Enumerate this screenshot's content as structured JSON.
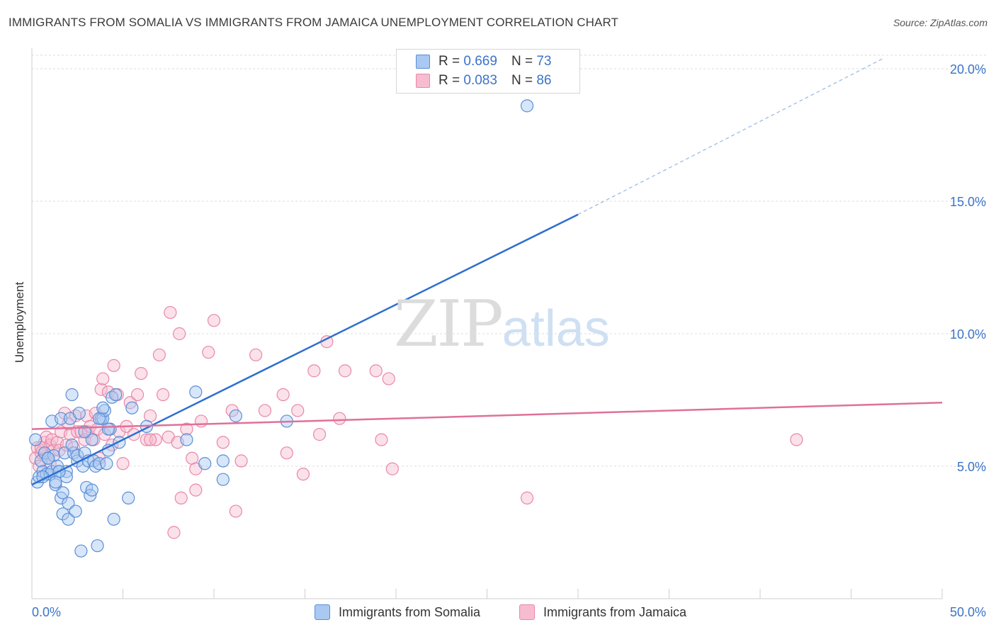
{
  "title": "IMMIGRANTS FROM SOMALIA VS IMMIGRANTS FROM JAMAICA UNEMPLOYMENT CORRELATION CHART",
  "source": "Source: ZipAtlas.com",
  "watermark": {
    "zip": "ZIP",
    "atlas": "atlas"
  },
  "legend": {
    "rows": [
      {
        "r_label": "R =",
        "r_value": "0.669",
        "n_label": "N =",
        "n_value": "73"
      },
      {
        "r_label": "R =",
        "r_value": "0.083",
        "n_label": "N =",
        "n_value": "86"
      }
    ]
  },
  "bottom_legend": [
    "Immigrants from Somalia",
    "Immigrants from Jamaica"
  ],
  "colors": {
    "somalia_fill": "#a9c8f2",
    "somalia_stroke": "#5b8fd6",
    "somalia_line": "#2e6fd0",
    "jamaica_fill": "#f7bcd0",
    "jamaica_stroke": "#e888a8",
    "jamaica_line": "#e0709a",
    "axis_text": "#3a73c9",
    "grid": "#dddddd"
  },
  "chart_data": {
    "type": "scatter",
    "title": "IMMIGRANTS FROM SOMALIA VS IMMIGRANTS FROM JAMAICA UNEMPLOYMENT CORRELATION CHART",
    "xlabel": "",
    "ylabel": "Unemployment",
    "xlim": [
      0,
      50
    ],
    "ylim": [
      0,
      20.5
    ],
    "x_tick_labels": [
      "0.0%",
      "50.0%"
    ],
    "y_ticks": [
      5,
      10,
      15,
      20
    ],
    "y_tick_labels": [
      "5.0%",
      "10.0%",
      "15.0%",
      "20.0%"
    ],
    "grid": "horizontal dashed",
    "legend_position": "top-center",
    "series": [
      {
        "name": "Immigrants from Somalia",
        "R": 0.669,
        "N": 73,
        "trend": {
          "x": [
            0,
            30
          ],
          "y": [
            4.3,
            14.5
          ],
          "extended_to": [
            46.8,
            20.4
          ]
        },
        "points": [
          [
            0.2,
            6.0
          ],
          [
            0.3,
            4.4
          ],
          [
            0.4,
            4.6
          ],
          [
            0.5,
            5.2
          ],
          [
            0.6,
            4.8
          ],
          [
            0.7,
            5.5
          ],
          [
            0.8,
            4.7
          ],
          [
            0.9,
            5.3
          ],
          [
            1.0,
            4.7
          ],
          [
            1.1,
            4.8
          ],
          [
            1.2,
            5.4
          ],
          [
            1.1,
            6.7
          ],
          [
            1.3,
            4.3
          ],
          [
            1.4,
            5.0
          ],
          [
            1.5,
            4.8
          ],
          [
            1.6,
            3.8
          ],
          [
            1.6,
            6.8
          ],
          [
            1.7,
            4.0
          ],
          [
            1.8,
            5.5
          ],
          [
            1.9,
            4.8
          ],
          [
            1.7,
            3.2
          ],
          [
            1.9,
            4.6
          ],
          [
            2.0,
            3.0
          ],
          [
            2.0,
            3.6
          ],
          [
            2.1,
            6.8
          ],
          [
            2.2,
            7.7
          ],
          [
            2.3,
            5.5
          ],
          [
            2.4,
            3.3
          ],
          [
            2.5,
            5.2
          ],
          [
            2.5,
            5.4
          ],
          [
            2.6,
            7.0
          ],
          [
            2.7,
            1.8
          ],
          [
            2.8,
            5.0
          ],
          [
            2.9,
            5.5
          ],
          [
            3.0,
            4.2
          ],
          [
            3.1,
            5.2
          ],
          [
            3.2,
            3.9
          ],
          [
            3.3,
            4.1
          ],
          [
            3.3,
            6.0
          ],
          [
            3.4,
            5.2
          ],
          [
            3.5,
            5.0
          ],
          [
            3.6,
            2.0
          ],
          [
            3.7,
            5.1
          ],
          [
            3.8,
            6.8
          ],
          [
            3.9,
            6.8
          ],
          [
            4.0,
            7.1
          ],
          [
            4.1,
            5.1
          ],
          [
            4.2,
            5.6
          ],
          [
            4.3,
            6.4
          ],
          [
            4.4,
            7.6
          ],
          [
            4.5,
            3.0
          ],
          [
            4.6,
            7.7
          ],
          [
            4.8,
            5.9
          ],
          [
            5.3,
            3.8
          ],
          [
            5.5,
            7.2
          ],
          [
            6.3,
            6.5
          ],
          [
            8.5,
            6.0
          ],
          [
            9.0,
            7.8
          ],
          [
            9.5,
            5.1
          ],
          [
            10.5,
            5.2
          ],
          [
            11.2,
            6.9
          ],
          [
            14.0,
            6.7
          ],
          [
            10.5,
            4.5
          ],
          [
            3.7,
            6.8
          ],
          [
            2.9,
            6.3
          ],
          [
            1.5,
            4.8
          ],
          [
            0.9,
            5.3
          ],
          [
            0.6,
            4.6
          ],
          [
            1.3,
            4.4
          ],
          [
            3.9,
            7.2
          ],
          [
            2.2,
            5.8
          ],
          [
            4.2,
            6.4
          ],
          [
            27.2,
            18.6
          ]
        ]
      },
      {
        "name": "Immigrants from Jamaica",
        "R": 0.083,
        "N": 86,
        "trend": {
          "x": [
            0,
            50
          ],
          "y": [
            6.4,
            7.4
          ]
        },
        "points": [
          [
            0.2,
            5.3
          ],
          [
            0.3,
            5.7
          ],
          [
            0.4,
            5.0
          ],
          [
            0.5,
            5.5
          ],
          [
            0.6,
            5.6
          ],
          [
            0.7,
            5.9
          ],
          [
            0.8,
            6.1
          ],
          [
            0.9,
            5.3
          ],
          [
            1.0,
            5.8
          ],
          [
            1.1,
            6.0
          ],
          [
            1.2,
            5.6
          ],
          [
            1.4,
            5.9
          ],
          [
            1.5,
            5.6
          ],
          [
            1.6,
            6.3
          ],
          [
            1.8,
            7.0
          ],
          [
            1.9,
            5.8
          ],
          [
            2.1,
            6.2
          ],
          [
            2.3,
            5.7
          ],
          [
            2.4,
            6.9
          ],
          [
            2.5,
            6.3
          ],
          [
            2.7,
            6.3
          ],
          [
            2.9,
            6.0
          ],
          [
            3.0,
            6.9
          ],
          [
            3.1,
            6.3
          ],
          [
            3.2,
            6.5
          ],
          [
            3.4,
            6.0
          ],
          [
            3.5,
            7.0
          ],
          [
            3.6,
            6.4
          ],
          [
            3.7,
            5.3
          ],
          [
            3.8,
            7.9
          ],
          [
            3.9,
            8.3
          ],
          [
            4.0,
            6.2
          ],
          [
            4.2,
            7.8
          ],
          [
            4.4,
            5.8
          ],
          [
            4.5,
            8.8
          ],
          [
            4.7,
            7.7
          ],
          [
            4.8,
            6.3
          ],
          [
            5.0,
            5.1
          ],
          [
            5.2,
            6.5
          ],
          [
            5.4,
            7.4
          ],
          [
            5.6,
            6.2
          ],
          [
            5.8,
            7.7
          ],
          [
            6.0,
            8.5
          ],
          [
            6.3,
            6.0
          ],
          [
            6.5,
            6.9
          ],
          [
            6.8,
            6.0
          ],
          [
            7.0,
            9.2
          ],
          [
            7.2,
            7.7
          ],
          [
            7.5,
            6.1
          ],
          [
            7.6,
            10.8
          ],
          [
            7.8,
            2.5
          ],
          [
            8.0,
            5.9
          ],
          [
            8.1,
            10.0
          ],
          [
            8.2,
            3.8
          ],
          [
            8.5,
            6.4
          ],
          [
            8.8,
            5.3
          ],
          [
            9.0,
            4.1
          ],
          [
            9.3,
            6.7
          ],
          [
            9.7,
            9.3
          ],
          [
            10.0,
            10.5
          ],
          [
            10.5,
            5.9
          ],
          [
            11.0,
            7.1
          ],
          [
            11.2,
            3.3
          ],
          [
            11.5,
            5.2
          ],
          [
            12.3,
            9.2
          ],
          [
            12.8,
            7.1
          ],
          [
            13.8,
            7.7
          ],
          [
            14.0,
            5.5
          ],
          [
            14.6,
            7.1
          ],
          [
            14.9,
            4.7
          ],
          [
            15.5,
            8.6
          ],
          [
            15.8,
            6.2
          ],
          [
            16.2,
            9.7
          ],
          [
            16.9,
            6.8
          ],
          [
            17.2,
            8.6
          ],
          [
            18.9,
            8.6
          ],
          [
            19.2,
            6.0
          ],
          [
            19.6,
            8.3
          ],
          [
            19.8,
            4.9
          ],
          [
            27.2,
            3.8
          ],
          [
            42.0,
            6.0
          ],
          [
            0.5,
            5.7
          ],
          [
            1.0,
            5.1
          ],
          [
            2.0,
            6.6
          ],
          [
            6.5,
            6.0
          ],
          [
            9.0,
            4.9
          ]
        ]
      }
    ]
  }
}
